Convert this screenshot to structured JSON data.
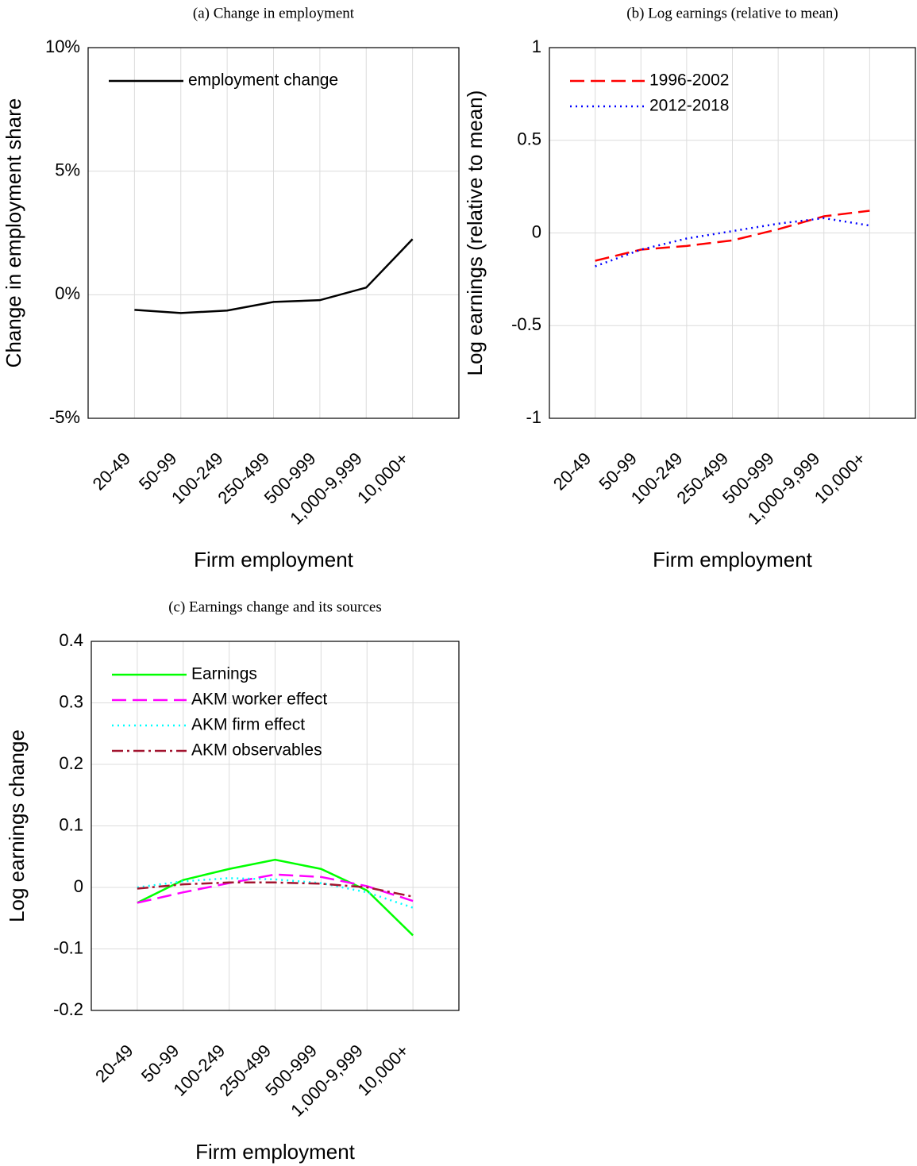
{
  "chart_data": [
    {
      "type": "line",
      "title": "(a) Change in employment",
      "x_label": "Firm employment",
      "y_label": "Change in employment share",
      "categories": [
        "20-49",
        "50-99",
        "100-249",
        "250-499",
        "500-999",
        "1,000-9,999",
        "10,000+"
      ],
      "ylim": [
        -5,
        10
      ],
      "yticks": [
        {
          "value": -5,
          "label": "-5%"
        },
        {
          "value": 0,
          "label": "0%"
        },
        {
          "value": 5,
          "label": "5%"
        },
        {
          "value": 10,
          "label": "10%"
        }
      ],
      "grid": true,
      "legend": "upper left",
      "series": [
        {
          "name": "employment change",
          "color": "#000000",
          "dash": "solid",
          "values": [
            -0.61,
            -0.74,
            -0.64,
            -0.29,
            -0.22,
            0.29,
            2.25
          ]
        }
      ]
    },
    {
      "type": "line",
      "title": "(b) Log earnings (relative to mean)",
      "x_label": "Firm employment",
      "y_label": "Log earnings (relative to mean)",
      "categories": [
        "20-49",
        "50-99",
        "100-249",
        "250-499",
        "500-999",
        "1,000-9,999",
        "10,000+"
      ],
      "ylim": [
        -1,
        1
      ],
      "yticks": [
        -1,
        -0.5,
        0,
        0.5,
        1
      ],
      "grid": true,
      "legend": "upper left",
      "series": [
        {
          "name": "1996-2002",
          "color": "#ff0000",
          "dash": "dashed",
          "values": [
            -0.15,
            -0.09,
            -0.07,
            -0.04,
            0.02,
            0.09,
            0.12
          ]
        },
        {
          "name": "2012-2018",
          "color": "#0000ff",
          "dash": "dotted",
          "values": [
            -0.18,
            -0.09,
            -0.03,
            0.01,
            0.05,
            0.08,
            0.04
          ]
        }
      ]
    },
    {
      "type": "line",
      "title": "(c) Earnings change and its sources",
      "x_label": "Firm employment",
      "y_label": "Log earnings change",
      "categories": [
        "20-49",
        "50-99",
        "100-249",
        "250-499",
        "500-999",
        "1,000-9,999",
        "10,000+"
      ],
      "ylim": [
        -0.2,
        0.4
      ],
      "yticks": [
        -0.2,
        -0.1,
        0,
        0.1,
        0.2,
        0.3,
        0.4
      ],
      "grid": true,
      "legend": "upper left",
      "series": [
        {
          "name": "Earnings",
          "color": "#00ff00",
          "dash": "solid",
          "values": [
            -0.025,
            0.012,
            0.03,
            0.045,
            0.03,
            -0.005,
            -0.078
          ]
        },
        {
          "name": "AKM worker effect",
          "color": "#ff00ff",
          "dash": "dashed",
          "values": [
            -0.025,
            -0.008,
            0.007,
            0.021,
            0.017,
            0.002,
            -0.022
          ]
        },
        {
          "name": "AKM firm effect",
          "color": "#00ffff",
          "dash": "dotted",
          "values": [
            0.0,
            0.01,
            0.015,
            0.013,
            0.007,
            -0.008,
            -0.033
          ]
        },
        {
          "name": "AKM observables",
          "color": "#a2142f",
          "dash": "dashdot",
          "values": [
            -0.002,
            0.005,
            0.008,
            0.008,
            0.006,
            0.0,
            -0.015
          ]
        }
      ]
    }
  ]
}
